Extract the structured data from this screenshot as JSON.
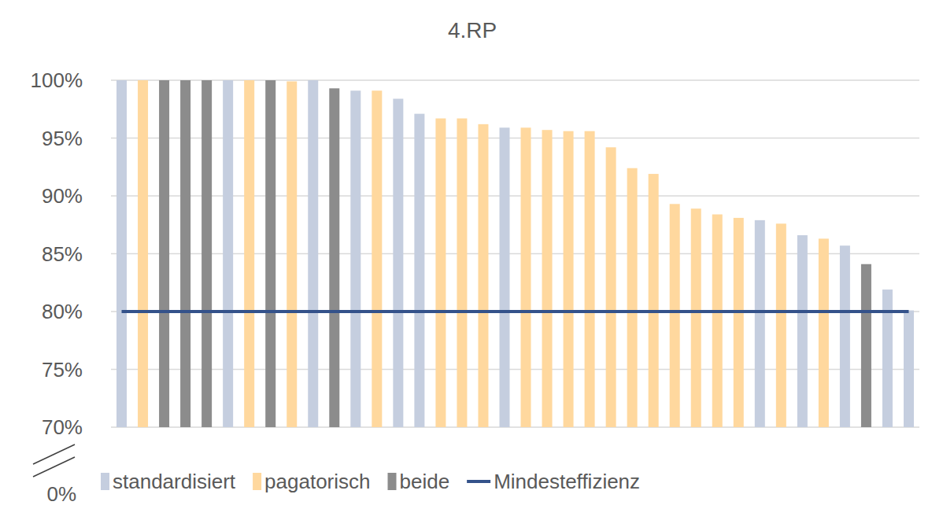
{
  "chart_data": {
    "type": "bar",
    "title": "4.RP",
    "categories": [
      null,
      null,
      null,
      null,
      null,
      null,
      null,
      null,
      null,
      null,
      null,
      null,
      null,
      null,
      null,
      null,
      null,
      null,
      null,
      null,
      null,
      null,
      null,
      null,
      null,
      null,
      null,
      null,
      null,
      null,
      null,
      null,
      null,
      null,
      null,
      null,
      null,
      null
    ],
    "series": [
      {
        "name": "standardisiert",
        "color": "#c5cedf",
        "type": "bar",
        "values": [
          100,
          null,
          null,
          null,
          null,
          100,
          null,
          null,
          null,
          100,
          null,
          99.1,
          null,
          98.4,
          97.1,
          null,
          null,
          null,
          95.9,
          null,
          null,
          null,
          null,
          null,
          null,
          null,
          null,
          null,
          null,
          null,
          87.9,
          null,
          86.6,
          null,
          85.7,
          null,
          81.9,
          80.1
        ]
      },
      {
        "name": "pagatorisch",
        "color": "#ffd89e",
        "type": "bar",
        "values": [
          null,
          100,
          null,
          null,
          null,
          null,
          100,
          null,
          99.9,
          null,
          null,
          null,
          99.1,
          null,
          null,
          96.7,
          96.7,
          96.2,
          null,
          95.9,
          95.7,
          95.6,
          95.6,
          94.2,
          92.4,
          91.9,
          89.3,
          88.9,
          88.4,
          88.1,
          null,
          87.6,
          null,
          86.3,
          null,
          null,
          null,
          null
        ]
      },
      {
        "name": "beide",
        "color": "#8c8c8c",
        "type": "bar",
        "values": [
          null,
          null,
          100,
          100,
          100,
          null,
          null,
          100,
          null,
          null,
          99.3,
          null,
          null,
          null,
          null,
          null,
          null,
          null,
          null,
          null,
          null,
          null,
          null,
          null,
          null,
          null,
          null,
          null,
          null,
          null,
          null,
          null,
          null,
          null,
          null,
          84.1,
          null,
          null
        ]
      },
      {
        "name": "Mindesteffizienz",
        "color": "#34528a",
        "type": "line",
        "values": [
          80,
          80,
          80,
          80,
          80,
          80,
          80,
          80,
          80,
          80,
          80,
          80,
          80,
          80,
          80,
          80,
          80,
          80,
          80,
          80,
          80,
          80,
          80,
          80,
          80,
          80,
          80,
          80,
          80,
          80,
          80,
          80,
          80,
          80,
          80,
          80,
          80,
          80
        ]
      }
    ],
    "ylim": [
      70,
      100
    ],
    "yticks": [
      {
        "value": 70,
        "label": "70%"
      },
      {
        "value": 75,
        "label": "75%"
      },
      {
        "value": 80,
        "label": "80%"
      },
      {
        "value": 85,
        "label": "85%"
      },
      {
        "value": 90,
        "label": "90%"
      },
      {
        "value": 95,
        "label": "95%"
      },
      {
        "value": 100,
        "label": "100%"
      }
    ],
    "axis_break_label": {
      "value": 0,
      "label": "0%"
    },
    "grid": true,
    "legend": "bottom"
  }
}
